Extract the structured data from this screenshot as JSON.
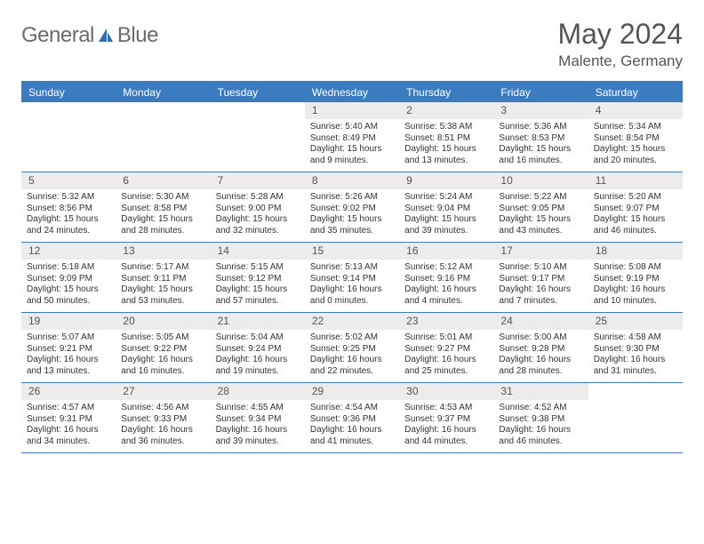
{
  "logo": {
    "part1": "General",
    "part2": "Blue"
  },
  "title": {
    "month": "May 2024",
    "location": "Malente, Germany"
  },
  "colors": {
    "header_bg": "#3b7bbf",
    "header_text": "#ffffff",
    "daynum_bg": "#ececec",
    "border": "#3b7bbf",
    "logo_gray": "#6b6b6b",
    "logo_blue": "#2f6fb0"
  },
  "day_names": [
    "Sunday",
    "Monday",
    "Tuesday",
    "Wednesday",
    "Thursday",
    "Friday",
    "Saturday"
  ],
  "weeks": [
    [
      {
        "n": "",
        "lines": []
      },
      {
        "n": "",
        "lines": []
      },
      {
        "n": "",
        "lines": []
      },
      {
        "n": "1",
        "lines": [
          "Sunrise: 5:40 AM",
          "Sunset: 8:49 PM",
          "Daylight: 15 hours",
          "and 9 minutes."
        ]
      },
      {
        "n": "2",
        "lines": [
          "Sunrise: 5:38 AM",
          "Sunset: 8:51 PM",
          "Daylight: 15 hours",
          "and 13 minutes."
        ]
      },
      {
        "n": "3",
        "lines": [
          "Sunrise: 5:36 AM",
          "Sunset: 8:53 PM",
          "Daylight: 15 hours",
          "and 16 minutes."
        ]
      },
      {
        "n": "4",
        "lines": [
          "Sunrise: 5:34 AM",
          "Sunset: 8:54 PM",
          "Daylight: 15 hours",
          "and 20 minutes."
        ]
      }
    ],
    [
      {
        "n": "5",
        "lines": [
          "Sunrise: 5:32 AM",
          "Sunset: 8:56 PM",
          "Daylight: 15 hours",
          "and 24 minutes."
        ]
      },
      {
        "n": "6",
        "lines": [
          "Sunrise: 5:30 AM",
          "Sunset: 8:58 PM",
          "Daylight: 15 hours",
          "and 28 minutes."
        ]
      },
      {
        "n": "7",
        "lines": [
          "Sunrise: 5:28 AM",
          "Sunset: 9:00 PM",
          "Daylight: 15 hours",
          "and 32 minutes."
        ]
      },
      {
        "n": "8",
        "lines": [
          "Sunrise: 5:26 AM",
          "Sunset: 9:02 PM",
          "Daylight: 15 hours",
          "and 35 minutes."
        ]
      },
      {
        "n": "9",
        "lines": [
          "Sunrise: 5:24 AM",
          "Sunset: 9:04 PM",
          "Daylight: 15 hours",
          "and 39 minutes."
        ]
      },
      {
        "n": "10",
        "lines": [
          "Sunrise: 5:22 AM",
          "Sunset: 9:05 PM",
          "Daylight: 15 hours",
          "and 43 minutes."
        ]
      },
      {
        "n": "11",
        "lines": [
          "Sunrise: 5:20 AM",
          "Sunset: 9:07 PM",
          "Daylight: 15 hours",
          "and 46 minutes."
        ]
      }
    ],
    [
      {
        "n": "12",
        "lines": [
          "Sunrise: 5:18 AM",
          "Sunset: 9:09 PM",
          "Daylight: 15 hours",
          "and 50 minutes."
        ]
      },
      {
        "n": "13",
        "lines": [
          "Sunrise: 5:17 AM",
          "Sunset: 9:11 PM",
          "Daylight: 15 hours",
          "and 53 minutes."
        ]
      },
      {
        "n": "14",
        "lines": [
          "Sunrise: 5:15 AM",
          "Sunset: 9:12 PM",
          "Daylight: 15 hours",
          "and 57 minutes."
        ]
      },
      {
        "n": "15",
        "lines": [
          "Sunrise: 5:13 AM",
          "Sunset: 9:14 PM",
          "Daylight: 16 hours",
          "and 0 minutes."
        ]
      },
      {
        "n": "16",
        "lines": [
          "Sunrise: 5:12 AM",
          "Sunset: 9:16 PM",
          "Daylight: 16 hours",
          "and 4 minutes."
        ]
      },
      {
        "n": "17",
        "lines": [
          "Sunrise: 5:10 AM",
          "Sunset: 9:17 PM",
          "Daylight: 16 hours",
          "and 7 minutes."
        ]
      },
      {
        "n": "18",
        "lines": [
          "Sunrise: 5:08 AM",
          "Sunset: 9:19 PM",
          "Daylight: 16 hours",
          "and 10 minutes."
        ]
      }
    ],
    [
      {
        "n": "19",
        "lines": [
          "Sunrise: 5:07 AM",
          "Sunset: 9:21 PM",
          "Daylight: 16 hours",
          "and 13 minutes."
        ]
      },
      {
        "n": "20",
        "lines": [
          "Sunrise: 5:05 AM",
          "Sunset: 9:22 PM",
          "Daylight: 16 hours",
          "and 16 minutes."
        ]
      },
      {
        "n": "21",
        "lines": [
          "Sunrise: 5:04 AM",
          "Sunset: 9:24 PM",
          "Daylight: 16 hours",
          "and 19 minutes."
        ]
      },
      {
        "n": "22",
        "lines": [
          "Sunrise: 5:02 AM",
          "Sunset: 9:25 PM",
          "Daylight: 16 hours",
          "and 22 minutes."
        ]
      },
      {
        "n": "23",
        "lines": [
          "Sunrise: 5:01 AM",
          "Sunset: 9:27 PM",
          "Daylight: 16 hours",
          "and 25 minutes."
        ]
      },
      {
        "n": "24",
        "lines": [
          "Sunrise: 5:00 AM",
          "Sunset: 9:28 PM",
          "Daylight: 16 hours",
          "and 28 minutes."
        ]
      },
      {
        "n": "25",
        "lines": [
          "Sunrise: 4:58 AM",
          "Sunset: 9:30 PM",
          "Daylight: 16 hours",
          "and 31 minutes."
        ]
      }
    ],
    [
      {
        "n": "26",
        "lines": [
          "Sunrise: 4:57 AM",
          "Sunset: 9:31 PM",
          "Daylight: 16 hours",
          "and 34 minutes."
        ]
      },
      {
        "n": "27",
        "lines": [
          "Sunrise: 4:56 AM",
          "Sunset: 9:33 PM",
          "Daylight: 16 hours",
          "and 36 minutes."
        ]
      },
      {
        "n": "28",
        "lines": [
          "Sunrise: 4:55 AM",
          "Sunset: 9:34 PM",
          "Daylight: 16 hours",
          "and 39 minutes."
        ]
      },
      {
        "n": "29",
        "lines": [
          "Sunrise: 4:54 AM",
          "Sunset: 9:36 PM",
          "Daylight: 16 hours",
          "and 41 minutes."
        ]
      },
      {
        "n": "30",
        "lines": [
          "Sunrise: 4:53 AM",
          "Sunset: 9:37 PM",
          "Daylight: 16 hours",
          "and 44 minutes."
        ]
      },
      {
        "n": "31",
        "lines": [
          "Sunrise: 4:52 AM",
          "Sunset: 9:38 PM",
          "Daylight: 16 hours",
          "and 46 minutes."
        ]
      },
      {
        "n": "",
        "lines": []
      }
    ]
  ]
}
